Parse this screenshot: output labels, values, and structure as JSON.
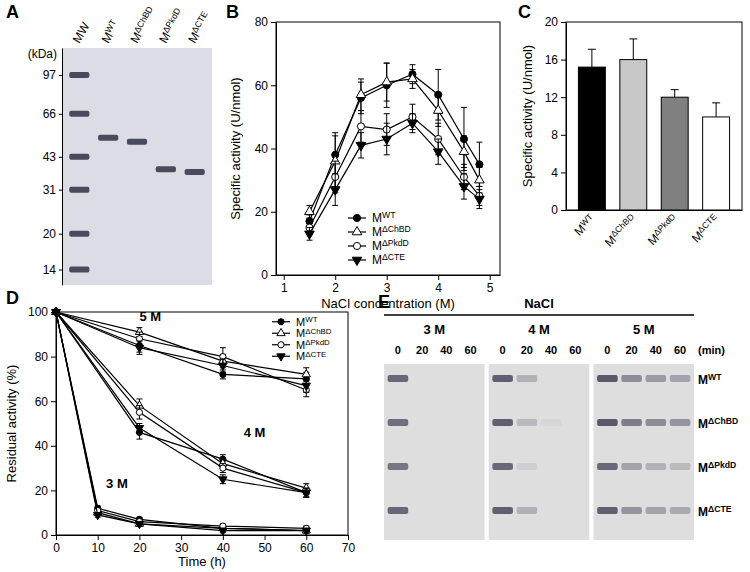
{
  "chart_data": [
    {
      "type": "gel",
      "title": "A",
      "y_label": "(kDa)",
      "categories": [
        "MW",
        "MWT",
        "MΔChBD",
        "MΔPkdD",
        "MΔCTE"
      ],
      "bands": [
        [
          97,
          66,
          43,
          31,
          20,
          14
        ],
        [
          52
        ],
        [
          50
        ],
        [
          38
        ],
        [
          37
        ]
      ],
      "ylim": [
        12,
        127
      ],
      "yticks": [
        97,
        66,
        43,
        31,
        20,
        14
      ],
      "log": "y",
      "color": "#4a4a5e"
    },
    {
      "type": "line",
      "title": "B",
      "x_label": "NaCl concentration (M)",
      "y_label": "Specific activity (U/nmol)",
      "x": [
        1.5,
        2,
        2.5,
        3,
        3.5,
        4,
        4.5,
        4.8
      ],
      "xlim": [
        0.85,
        5.2
      ],
      "xticks": [
        1,
        2,
        3,
        4,
        5
      ],
      "ylim": [
        0,
        80
      ],
      "yticks": [
        0,
        20,
        40,
        60,
        80
      ],
      "legend": "bottom",
      "series": [
        {
          "name": "MWT",
          "color": "#000000",
          "marker": "circle",
          "values": [
            17,
            38,
            56,
            60,
            63.5,
            57,
            43,
            35
          ],
          "errors": [
            2,
            7,
            5,
            7,
            3,
            8,
            10,
            7
          ]
        },
        {
          "name": "MΔChBD",
          "color": "#000000",
          "marker": "triangle-open",
          "values": [
            20,
            36,
            57,
            61,
            62,
            52,
            39,
            30
          ],
          "errors": [
            2,
            8,
            5,
            6,
            3,
            5,
            5,
            4
          ]
        },
        {
          "name": "MΔPkdD",
          "color": "#000000",
          "marker": "circle-open",
          "values": [
            15,
            31,
            47,
            46,
            50,
            43,
            31,
            25
          ],
          "errors": [
            2,
            5,
            5,
            5,
            4,
            5,
            4,
            3
          ]
        },
        {
          "name": "MΔCTE",
          "color": "#000000",
          "marker": "triangle-down",
          "values": [
            13,
            27,
            41,
            43,
            48,
            39,
            28,
            24
          ],
          "errors": [
            2,
            5,
            4,
            5,
            3,
            4,
            4,
            3
          ]
        }
      ]
    },
    {
      "type": "bar",
      "title": "C",
      "y_label": "Specific activity (U/nmol)",
      "categories": [
        "MWT",
        "MΔChBD",
        "MΔPkdD",
        "MΔCTE"
      ],
      "values": [
        15.2,
        16,
        12,
        9.9
      ],
      "errors": [
        1.9,
        2.2,
        0.8,
        1.5
      ],
      "colors": [
        "#000000",
        "#c8c8c8",
        "#808080",
        "#ffffff"
      ],
      "ylim": [
        0,
        20
      ],
      "yticks": [
        0,
        4,
        8,
        12,
        16,
        20
      ]
    },
    {
      "type": "line",
      "title": "D",
      "x_label": "Time (h)",
      "y_label": "Residual activity (%)",
      "xlim": [
        0,
        70
      ],
      "xticks": [
        0,
        10,
        20,
        30,
        40,
        50,
        60,
        70
      ],
      "ylim": [
        0,
        100
      ],
      "yticks": [
        0,
        20,
        40,
        60,
        80,
        100
      ],
      "legend": "top-right",
      "annotations": [
        {
          "text": "5 M",
          "x": 20,
          "y": 96
        },
        {
          "text": "4 M",
          "x": 45,
          "y": 44
        },
        {
          "text": "3 M",
          "x": 12,
          "y": 21
        }
      ],
      "series": [
        {
          "name": "MWT",
          "color": "#000000",
          "marker": "circle",
          "x": [
            0,
            20,
            40,
            60
          ],
          "values": [
            100,
            85,
            72,
            70
          ],
          "errors": [
            0,
            3,
            2,
            3
          ]
        },
        {
          "name": "MΔChBD",
          "color": "#000000",
          "marker": "triangle-open",
          "x": [
            0,
            20,
            40,
            60
          ],
          "values": [
            100,
            91,
            78,
            72
          ],
          "errors": [
            0,
            2,
            3,
            3
          ]
        },
        {
          "name": "MΔPkdD",
          "color": "#000000",
          "marker": "circle-open",
          "x": [
            0,
            20,
            40,
            60
          ],
          "values": [
            100,
            88,
            80,
            65
          ],
          "errors": [
            0,
            3,
            4,
            3
          ]
        },
        {
          "name": "MΔCTE",
          "color": "#000000",
          "marker": "triangle-down",
          "x": [
            0,
            20,
            40,
            60
          ],
          "values": [
            100,
            84,
            76,
            67
          ],
          "errors": [
            0,
            3,
            3,
            3
          ]
        },
        {
          "name": "MWT",
          "color": "#000000",
          "marker": "circle",
          "x": [
            0,
            20,
            40,
            60
          ],
          "values": [
            100,
            46,
            34,
            19
          ],
          "errors": [
            0,
            3,
            2,
            2
          ]
        },
        {
          "name": "MΔChBD",
          "color": "#000000",
          "marker": "triangle-open",
          "x": [
            0,
            20,
            40,
            60
          ],
          "values": [
            100,
            58,
            32,
            21
          ],
          "errors": [
            0,
            3,
            2,
            2
          ]
        },
        {
          "name": "MΔPkdD",
          "color": "#000000",
          "marker": "circle-open",
          "x": [
            0,
            20,
            40,
            60
          ],
          "values": [
            100,
            55,
            30,
            19
          ],
          "errors": [
            0,
            3,
            2,
            2
          ]
        },
        {
          "name": "MΔCTE",
          "color": "#000000",
          "marker": "triangle-down",
          "x": [
            0,
            20,
            40,
            60
          ],
          "values": [
            100,
            48,
            25,
            19
          ],
          "errors": [
            0,
            2,
            2,
            2
          ]
        },
        {
          "name": "MWT",
          "color": "#000000",
          "marker": "circle",
          "x": [
            0,
            10,
            20,
            40,
            60
          ],
          "values": [
            100,
            12,
            7,
            3,
            2
          ],
          "errors": [
            0,
            1,
            1,
            1,
            1
          ]
        },
        {
          "name": "MΔChBD",
          "color": "#000000",
          "marker": "triangle-open",
          "x": [
            0,
            10,
            20,
            40,
            60
          ],
          "values": [
            100,
            10,
            5,
            3,
            2
          ],
          "errors": [
            0,
            1,
            1,
            1,
            1
          ]
        },
        {
          "name": "MΔPkdD",
          "color": "#000000",
          "marker": "circle-open",
          "x": [
            0,
            10,
            20,
            40,
            60
          ],
          "values": [
            100,
            11,
            6,
            4,
            3
          ],
          "errors": [
            0,
            1,
            1,
            1,
            1
          ]
        },
        {
          "name": "MΔCTE",
          "color": "#000000",
          "marker": "triangle-down",
          "x": [
            0,
            10,
            20,
            40,
            60
          ],
          "values": [
            100,
            9,
            5,
            2,
            2
          ],
          "errors": [
            0,
            1,
            1,
            1,
            1
          ]
        }
      ]
    },
    {
      "type": "gel-grid",
      "title": "E",
      "header": "NaCl",
      "groups": [
        "3 M",
        "4 M",
        "5 M"
      ],
      "times": [
        0,
        20,
        40,
        60
      ],
      "time_unit": "(min)",
      "rows": [
        "MWT",
        "MΔChBD",
        "MΔPkdD",
        "MΔCTE"
      ],
      "intensity": [
        [
          80,
          0,
          0,
          0,
          85,
          30,
          0,
          0,
          90,
          55,
          45,
          40
        ],
        [
          75,
          0,
          0,
          0,
          85,
          25,
          5,
          0,
          90,
          65,
          55,
          50
        ],
        [
          70,
          0,
          0,
          0,
          80,
          10,
          0,
          0,
          80,
          40,
          30,
          25
        ],
        [
          80,
          0,
          0,
          0,
          85,
          30,
          0,
          0,
          85,
          50,
          40,
          35
        ]
      ],
      "color": "#4a4a5e"
    }
  ]
}
